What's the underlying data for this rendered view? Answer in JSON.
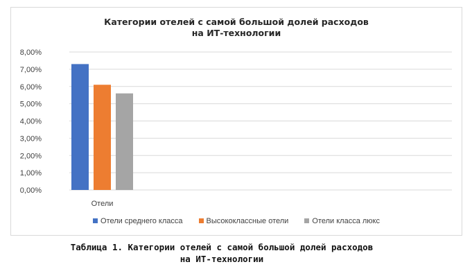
{
  "chart_data": {
    "type": "bar",
    "title_lines": [
      "Категории отелей с самой большой долей расходов",
      "на ИТ-технологии"
    ],
    "categories": [
      "Отели"
    ],
    "series": [
      {
        "name": "Отели среднего класса",
        "values": [
          7.3
        ],
        "color": "#4472c4"
      },
      {
        "name": "Высококлассные отели",
        "values": [
          6.1
        ],
        "color": "#ed7d31"
      },
      {
        "name": "Отели класса люкс",
        "values": [
          5.6
        ],
        "color": "#a5a5a5"
      }
    ],
    "y_ticks": [
      "0,00%",
      "1,00%",
      "2,00%",
      "3,00%",
      "4,00%",
      "5,00%",
      "6,00%",
      "7,00%",
      "8,00%"
    ],
    "ylim": [
      0,
      8
    ],
    "grid": true,
    "legend_position": "bottom"
  },
  "caption_lines": [
    "Таблица 1. Категории отелей с самой большой долей расходов",
    "на ИТ-технологии"
  ]
}
